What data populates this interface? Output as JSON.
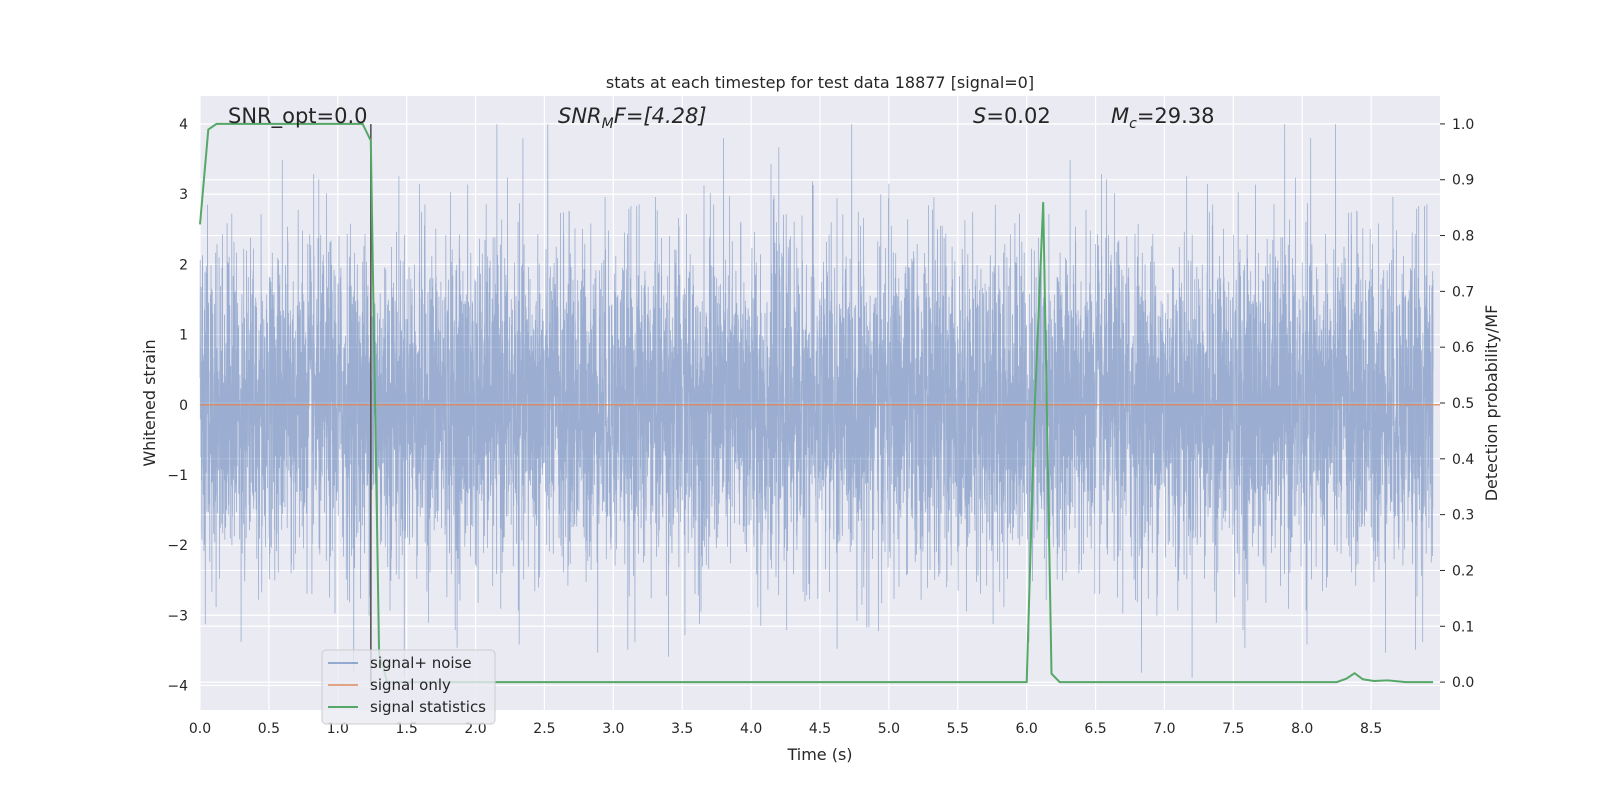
{
  "chart_data": {
    "type": "line",
    "title": "stats at each timestep for test data 18877 [signal=0]",
    "xlabel": "Time (s)",
    "ylabel_left": "Whitened strain",
    "ylabel_right": "Detection probability/MF",
    "xlim": [
      0,
      9.0
    ],
    "ylim_left": [
      -4.35,
      4.4
    ],
    "ylim_right": [
      -0.05,
      1.05
    ],
    "x_ticks": [
      "0.0",
      "0.5",
      "1.0",
      "1.5",
      "2.0",
      "2.5",
      "3.0",
      "3.5",
      "4.0",
      "4.5",
      "5.0",
      "5.5",
      "6.0",
      "6.5",
      "7.0",
      "7.5",
      "8.0",
      "8.5"
    ],
    "y_ticks_left": [
      "−4",
      "−3",
      "−2",
      "−1",
      "0",
      "1",
      "2",
      "3",
      "4"
    ],
    "y_ticks_right": [
      "0.0",
      "0.1",
      "0.2",
      "0.3",
      "0.4",
      "0.5",
      "0.6",
      "0.7",
      "0.8",
      "0.9",
      "1.0"
    ],
    "grid": true,
    "legend_position": "lower-left",
    "annotations": {
      "snr_opt": "SNR_opt=0.0",
      "snr_mf_sym": "SNR",
      "snr_mf_sub": "M",
      "snr_mf_rest": "F=[4.28]",
      "s_sym": "S",
      "s_rest": "=0.02",
      "mc_sym": "M",
      "mc_sub": "c",
      "mc_rest": "=29.38"
    },
    "vertical_marker_x": 1.24,
    "series": [
      {
        "name": "signal+ noise",
        "color": "#4c72b0",
        "axis": "left",
        "description_values": "whitened noise, approx 8192 samples, amplitude ~±4",
        "n_samples": 8192,
        "amplitude_envelope": [
          -3.9,
          4.0
        ]
      },
      {
        "name": "signal only",
        "color": "#dd8452",
        "axis": "left",
        "x": [
          0,
          9.0
        ],
        "y": [
          0,
          0
        ]
      },
      {
        "name": "signal statistics",
        "color": "#55a868",
        "axis": "right",
        "x": [
          0,
          0.06,
          0.12,
          0.2,
          1.0,
          1.18,
          1.24,
          1.3,
          1.36,
          1.42,
          6.0,
          6.06,
          6.12,
          6.18,
          6.24,
          8.0,
          8.25,
          8.32,
          8.38,
          8.44,
          8.52,
          8.62,
          8.75,
          8.95
        ],
        "y": [
          0.82,
          0.99,
          1.0,
          1.0,
          1.0,
          1.0,
          0.97,
          0.05,
          0.0,
          0.0,
          0.0,
          0.5,
          0.86,
          0.015,
          0.0,
          0.0,
          0.0,
          0.006,
          0.016,
          0.005,
          0.002,
          0.003,
          0.0,
          0.0
        ]
      }
    ]
  },
  "legend": {
    "items": [
      {
        "label": "signal+ noise",
        "color": "#4c72b0"
      },
      {
        "label": "signal only",
        "color": "#dd8452"
      },
      {
        "label": "signal statistics",
        "color": "#55a868"
      }
    ]
  }
}
